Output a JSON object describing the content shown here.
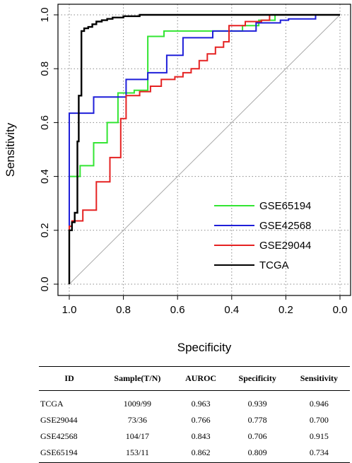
{
  "chart_data": {
    "type": "line",
    "xlabel": "Specificity",
    "ylabel": "Sensitivity",
    "xlim": [
      1.0,
      0.0
    ],
    "ylim": [
      0.0,
      1.0
    ],
    "x_reversed": true,
    "grid": true,
    "legend_placement": "bottom-right",
    "x_ticks": [
      "1.0",
      "0.8",
      "0.6",
      "0.4",
      "0.2",
      "0.0"
    ],
    "y_ticks": [
      "0.0",
      "0.2",
      "0.4",
      "0.6",
      "0.8",
      "1.0"
    ],
    "diagonal_reference": true,
    "series": [
      {
        "name": "GSE65194",
        "color": "#33e533",
        "points": [
          [
            1.0,
            0.0
          ],
          [
            1.0,
            0.4
          ],
          [
            0.96,
            0.4
          ],
          [
            0.96,
            0.44
          ],
          [
            0.91,
            0.44
          ],
          [
            0.91,
            0.525
          ],
          [
            0.86,
            0.525
          ],
          [
            0.86,
            0.6
          ],
          [
            0.82,
            0.6
          ],
          [
            0.82,
            0.71
          ],
          [
            0.76,
            0.71
          ],
          [
            0.76,
            0.72
          ],
          [
            0.71,
            0.72
          ],
          [
            0.71,
            0.92
          ],
          [
            0.65,
            0.92
          ],
          [
            0.65,
            0.94
          ],
          [
            0.36,
            0.94
          ],
          [
            0.36,
            0.96
          ],
          [
            0.3,
            0.96
          ],
          [
            0.3,
            0.98
          ],
          [
            0.24,
            0.98
          ],
          [
            0.24,
            1.0
          ],
          [
            0.0,
            1.0
          ]
        ]
      },
      {
        "name": "GSE42568",
        "color": "#1f1fd9",
        "points": [
          [
            1.0,
            0.0
          ],
          [
            1.0,
            0.635
          ],
          [
            0.91,
            0.635
          ],
          [
            0.91,
            0.695
          ],
          [
            0.79,
            0.695
          ],
          [
            0.79,
            0.76
          ],
          [
            0.71,
            0.76
          ],
          [
            0.71,
            0.785
          ],
          [
            0.64,
            0.785
          ],
          [
            0.64,
            0.85
          ],
          [
            0.58,
            0.85
          ],
          [
            0.58,
            0.915
          ],
          [
            0.47,
            0.915
          ],
          [
            0.47,
            0.94
          ],
          [
            0.31,
            0.94
          ],
          [
            0.31,
            0.97
          ],
          [
            0.22,
            0.97
          ],
          [
            0.22,
            0.98
          ],
          [
            0.19,
            0.98
          ],
          [
            0.19,
            0.985
          ],
          [
            0.09,
            0.985
          ],
          [
            0.09,
            1.0
          ]
        ]
      },
      {
        "name": "GSE29044",
        "color": "#e52222",
        "points": [
          [
            1.0,
            0.0
          ],
          [
            1.0,
            0.215
          ],
          [
            0.99,
            0.215
          ],
          [
            0.99,
            0.235
          ],
          [
            0.95,
            0.235
          ],
          [
            0.95,
            0.275
          ],
          [
            0.9,
            0.275
          ],
          [
            0.9,
            0.38
          ],
          [
            0.85,
            0.38
          ],
          [
            0.85,
            0.47
          ],
          [
            0.81,
            0.47
          ],
          [
            0.81,
            0.615
          ],
          [
            0.79,
            0.615
          ],
          [
            0.79,
            0.7
          ],
          [
            0.74,
            0.7
          ],
          [
            0.74,
            0.715
          ],
          [
            0.7,
            0.715
          ],
          [
            0.7,
            0.735
          ],
          [
            0.66,
            0.735
          ],
          [
            0.66,
            0.76
          ],
          [
            0.61,
            0.76
          ],
          [
            0.61,
            0.77
          ],
          [
            0.58,
            0.77
          ],
          [
            0.58,
            0.785
          ],
          [
            0.55,
            0.785
          ],
          [
            0.55,
            0.8
          ],
          [
            0.52,
            0.8
          ],
          [
            0.52,
            0.83
          ],
          [
            0.49,
            0.83
          ],
          [
            0.49,
            0.855
          ],
          [
            0.46,
            0.855
          ],
          [
            0.46,
            0.88
          ],
          [
            0.43,
            0.88
          ],
          [
            0.43,
            0.9
          ],
          [
            0.41,
            0.9
          ],
          [
            0.41,
            0.96
          ],
          [
            0.35,
            0.96
          ],
          [
            0.35,
            0.975
          ],
          [
            0.29,
            0.975
          ],
          [
            0.29,
            0.98
          ],
          [
            0.26,
            0.98
          ],
          [
            0.26,
            1.0
          ],
          [
            0.21,
            1.0
          ]
        ]
      },
      {
        "name": "TCGA",
        "color": "#000000",
        "points": [
          [
            1.0,
            0.0
          ],
          [
            1.0,
            0.2
          ],
          [
            0.99,
            0.2
          ],
          [
            0.99,
            0.23
          ],
          [
            0.98,
            0.23
          ],
          [
            0.98,
            0.265
          ],
          [
            0.97,
            0.265
          ],
          [
            0.97,
            0.53
          ],
          [
            0.965,
            0.53
          ],
          [
            0.965,
            0.7
          ],
          [
            0.955,
            0.7
          ],
          [
            0.955,
            0.94
          ],
          [
            0.945,
            0.94
          ],
          [
            0.945,
            0.95
          ],
          [
            0.93,
            0.95
          ],
          [
            0.93,
            0.955
          ],
          [
            0.915,
            0.955
          ],
          [
            0.915,
            0.965
          ],
          [
            0.9,
            0.965
          ],
          [
            0.9,
            0.975
          ],
          [
            0.88,
            0.975
          ],
          [
            0.88,
            0.98
          ],
          [
            0.86,
            0.98
          ],
          [
            0.86,
            0.985
          ],
          [
            0.84,
            0.985
          ],
          [
            0.84,
            0.99
          ],
          [
            0.8,
            0.99
          ],
          [
            0.8,
            0.995
          ],
          [
            0.74,
            0.995
          ],
          [
            0.74,
            1.0
          ],
          [
            0.6,
            1.0
          ],
          [
            0.0,
            1.0
          ]
        ]
      }
    ]
  },
  "table": {
    "headers": [
      "ID",
      "Sample(T/N)",
      "AUROC",
      "Specificity",
      "Sensitivity"
    ],
    "rows": [
      [
        "TCGA",
        "1009/99",
        "0.963",
        "0.939",
        "0.946"
      ],
      [
        "GSE29044",
        "73/36",
        "0.766",
        "0.778",
        "0.700"
      ],
      [
        "GSE42568",
        "104/17",
        "0.843",
        "0.706",
        "0.915"
      ],
      [
        "GSE65194",
        "153/11",
        "0.862",
        "0.809",
        "0.734"
      ]
    ]
  }
}
